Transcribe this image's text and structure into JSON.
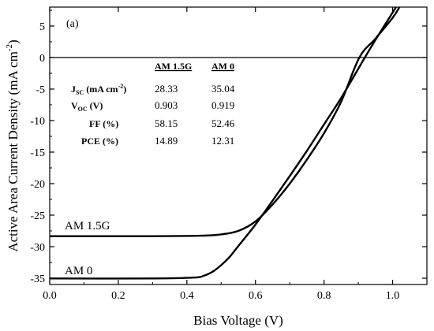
{
  "chart_data": {
    "type": "line",
    "panel_label": "(a)",
    "xlabel": "Bias Voltage (V)",
    "ylabel_main": "Active Area Current Density (mA cm",
    "ylabel_sup": "-2",
    "ylabel_close": ")",
    "xlim": [
      0.0,
      1.1
    ],
    "ylim": [
      -36,
      8
    ],
    "xticks": [
      0.0,
      0.2,
      0.4,
      0.6,
      0.8,
      1.0
    ],
    "xtick_labels": [
      "0.0",
      "0.2",
      "0.4",
      "0.6",
      "0.8",
      "1.0"
    ],
    "yticks": [
      5,
      0,
      -5,
      -10,
      -15,
      -20,
      -25,
      -30,
      -35
    ],
    "ytick_labels": [
      "5",
      "0",
      "-5",
      "-10",
      "-15",
      "-20",
      "-25",
      "-30",
      "-35"
    ],
    "zero_line": true,
    "series": [
      {
        "name": "AM 1.5G",
        "x": [
          0.0,
          0.3,
          0.45,
          0.5,
          0.55,
          0.6,
          0.65,
          0.7,
          0.75,
          0.8,
          0.85,
          0.903,
          0.95,
          1.0,
          1.02
        ],
        "y": [
          -28.33,
          -28.33,
          -28.25,
          -28.05,
          -27.5,
          -26.0,
          -23.3,
          -20.0,
          -16.2,
          -12.0,
          -7.0,
          0.0,
          3.0,
          6.3,
          8.0
        ]
      },
      {
        "name": "AM 0",
        "x": [
          0.0,
          0.3,
          0.42,
          0.45,
          0.48,
          0.52,
          0.55,
          0.6,
          0.65,
          0.7,
          0.75,
          0.8,
          0.85,
          0.919,
          0.95,
          0.995,
          1.01
        ],
        "y": [
          -35.04,
          -35.04,
          -34.9,
          -34.6,
          -33.8,
          -31.9,
          -29.9,
          -26.5,
          -22.7,
          -18.8,
          -14.8,
          -10.6,
          -6.4,
          0.0,
          2.8,
          6.7,
          8.0
        ]
      }
    ],
    "table": {
      "headers": [
        "",
        "AM 1.5G",
        "AM 0"
      ],
      "rows": [
        {
          "label_main": "J",
          "label_sub": "SC",
          "label_unit_pre": " (mA cm",
          "label_sup": "-2",
          "label_unit_post": ")",
          "values": [
            "28.33",
            "35.04"
          ]
        },
        {
          "label_main": "V",
          "label_sub": "OC",
          "label_unit_pre": " (V)",
          "label_sup": "",
          "label_unit_post": "",
          "values": [
            "0.903",
            "0.919"
          ]
        },
        {
          "label_main": "FF (%)",
          "label_sub": "",
          "label_unit_pre": "",
          "label_sup": "",
          "label_unit_post": "",
          "values": [
            "58.15",
            "52.46"
          ]
        },
        {
          "label_main": "PCE (%)",
          "label_sub": "",
          "label_unit_pre": "",
          "label_sup": "",
          "label_unit_post": "",
          "values": [
            "14.89",
            "12.31"
          ]
        }
      ]
    },
    "curve_labels": [
      {
        "text": "AM 1.5G",
        "series": "AM 1.5G"
      },
      {
        "text": "AM 0",
        "series": "AM 0"
      }
    ]
  }
}
